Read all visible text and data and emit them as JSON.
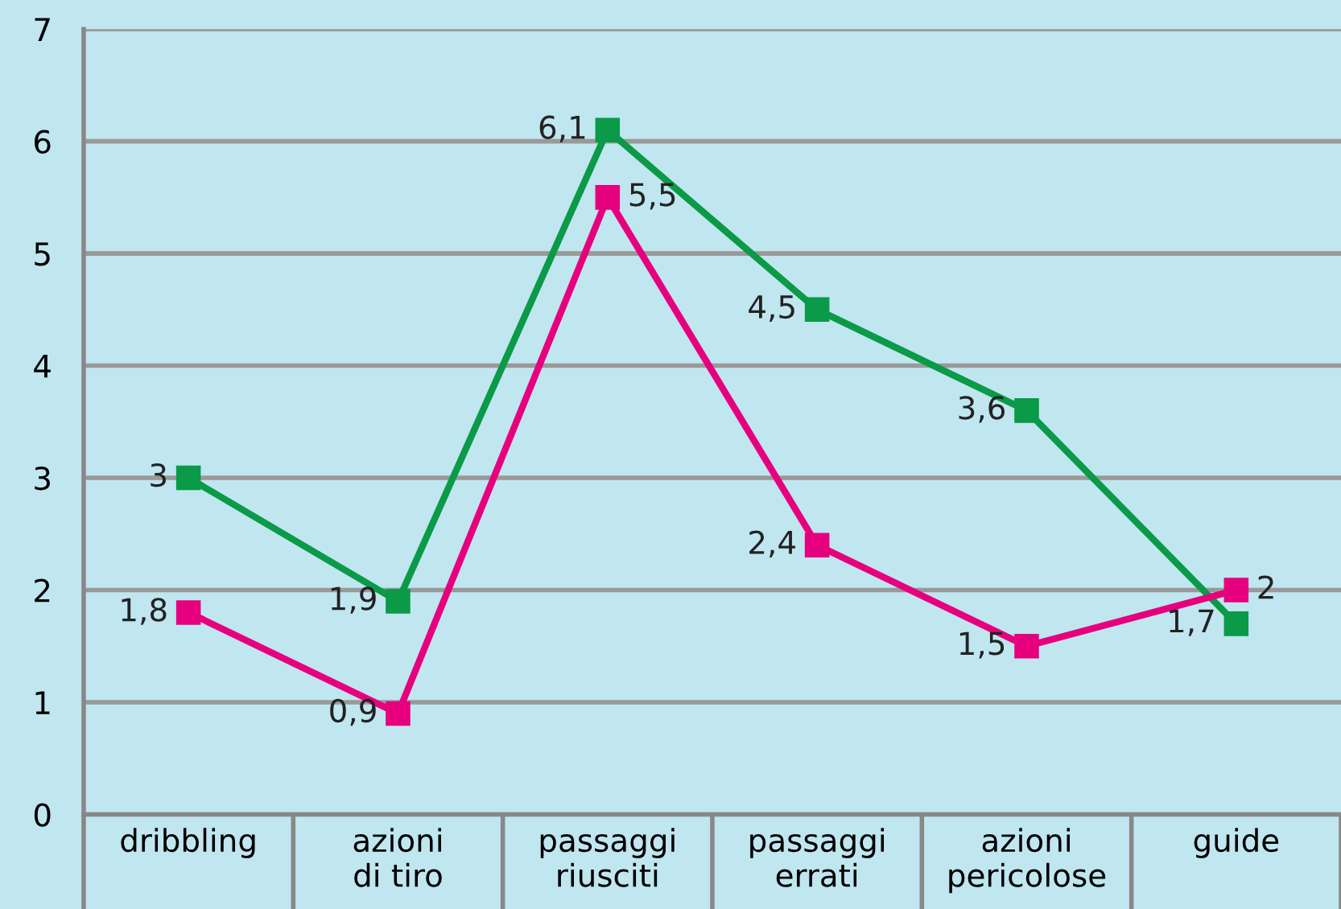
{
  "chart_data": {
    "type": "line",
    "categories": [
      "dribbling",
      "azioni\ndi tiro",
      "passaggi\nriusciti",
      "passaggi\nerrati",
      "azioni\npericolose",
      "guide"
    ],
    "series": [
      {
        "color": "#0a9a48",
        "values": [
          3,
          1.9,
          6.1,
          4.5,
          3.6,
          1.7
        ],
        "value_labels": [
          "3",
          "1,9",
          "6,1",
          "4,5",
          "3,6",
          "1,7"
        ]
      },
      {
        "color": "#e6007e",
        "values": [
          1.8,
          0.9,
          5.5,
          2.4,
          1.5,
          2
        ],
        "value_labels": [
          "1,8",
          "0,9",
          "5,5",
          "2,4",
          "1,5",
          "2"
        ]
      }
    ],
    "ylim": [
      0,
      7
    ],
    "yticks": [
      0,
      1,
      2,
      3,
      4,
      5,
      6,
      7
    ],
    "grid": "y",
    "marker": "square",
    "line_style": "solid"
  }
}
